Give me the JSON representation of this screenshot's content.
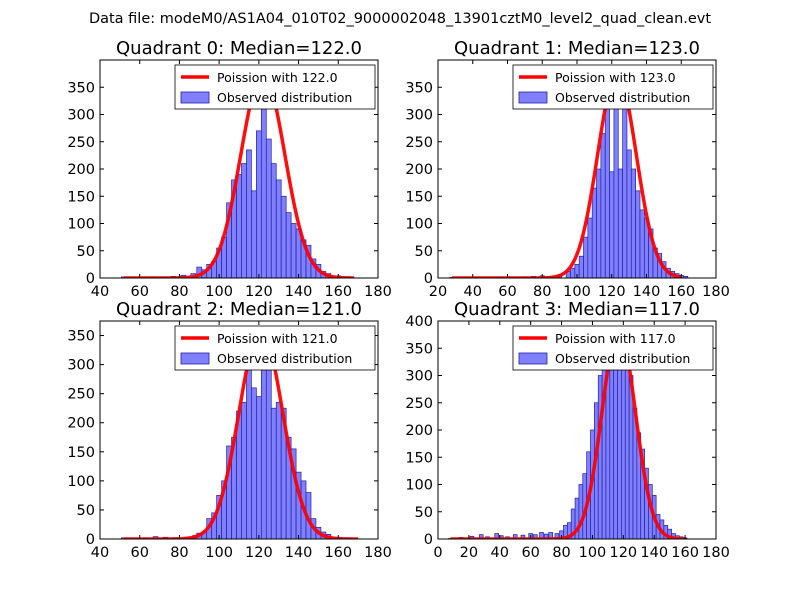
{
  "figure": {
    "title": "Data file: modeM0/AS1A04_010T02_9000002048_13901cztM0_level2_quad_clean.evt"
  },
  "colors": {
    "bar_fill": "#8080ff",
    "bar_edge": "#2020aa",
    "curve": "#ff0000",
    "axes": "#000000"
  },
  "chart_data": [
    {
      "type": "bar",
      "title": "Quadrant 0: Median=122.0",
      "legend": {
        "placement": "top-right",
        "entries": [
          "Poission with 122.0",
          "Observed distribution"
        ]
      },
      "xlim": [
        40,
        180
      ],
      "ylim": [
        0,
        400
      ],
      "xticks": [
        40,
        60,
        80,
        100,
        120,
        140,
        160,
        180
      ],
      "yticks": [
        0,
        50,
        100,
        150,
        200,
        250,
        300,
        350
      ],
      "bin_width": 2.5,
      "bins": [
        [
          52,
          2
        ],
        [
          57,
          1
        ],
        [
          62,
          1
        ],
        [
          67,
          2
        ],
        [
          72,
          1
        ],
        [
          77,
          3
        ],
        [
          82,
          5
        ],
        [
          87,
          8
        ],
        [
          90,
          20
        ],
        [
          92.5,
          15
        ],
        [
          95,
          25
        ],
        [
          97.5,
          30
        ],
        [
          100,
          55
        ],
        [
          102.5,
          75
        ],
        [
          105,
          138
        ],
        [
          107.5,
          180
        ],
        [
          110,
          190
        ],
        [
          112.5,
          210
        ],
        [
          115,
          235
        ],
        [
          117.5,
          160
        ],
        [
          120,
          270
        ],
        [
          122.5,
          325
        ],
        [
          125,
          255
        ],
        [
          127.5,
          210
        ],
        [
          130,
          180
        ],
        [
          132.5,
          150
        ],
        [
          135,
          120
        ],
        [
          137.5,
          100
        ],
        [
          140,
          90
        ],
        [
          142.5,
          70
        ],
        [
          145,
          60
        ],
        [
          147.5,
          35
        ],
        [
          150,
          25
        ],
        [
          152.5,
          12
        ],
        [
          155,
          8
        ],
        [
          160,
          4
        ],
        [
          165,
          2
        ]
      ],
      "poisson": {
        "mean": 122.0,
        "peak": 375,
        "xmin": 52,
        "xmax": 168
      }
    },
    {
      "type": "bar",
      "title": "Quadrant 1: Median=123.0",
      "legend": {
        "placement": "top-right",
        "entries": [
          "Poission with 123.0",
          "Observed distribution"
        ]
      },
      "xlim": [
        20,
        180
      ],
      "ylim": [
        0,
        400
      ],
      "xticks": [
        20,
        40,
        60,
        80,
        100,
        120,
        140,
        160,
        180
      ],
      "yticks": [
        0,
        50,
        100,
        150,
        200,
        250,
        300,
        350
      ],
      "bin_width": 2.5,
      "bins": [
        [
          28,
          1
        ],
        [
          42,
          1
        ],
        [
          55,
          1
        ],
        [
          62,
          1
        ],
        [
          70,
          2
        ],
        [
          75,
          3
        ],
        [
          80,
          4
        ],
        [
          85,
          3
        ],
        [
          90,
          6
        ],
        [
          95,
          12
        ],
        [
          97.5,
          18
        ],
        [
          100,
          25
        ],
        [
          102.5,
          40
        ],
        [
          105,
          75
        ],
        [
          107.5,
          110
        ],
        [
          110,
          165
        ],
        [
          112.5,
          200
        ],
        [
          115,
          265
        ],
        [
          117.5,
          340
        ],
        [
          120,
          195
        ],
        [
          122.5,
          355
        ],
        [
          125,
          200
        ],
        [
          127.5,
          345
        ],
        [
          130,
          235
        ],
        [
          132.5,
          200
        ],
        [
          135,
          160
        ],
        [
          137.5,
          125
        ],
        [
          140,
          110
        ],
        [
          142.5,
          90
        ],
        [
          145,
          55
        ],
        [
          147.5,
          45
        ],
        [
          150,
          30
        ],
        [
          152.5,
          18
        ],
        [
          155,
          12
        ],
        [
          157.5,
          8
        ],
        [
          160,
          5
        ],
        [
          162.5,
          3
        ]
      ],
      "poisson": {
        "mean": 123.0,
        "peak": 375,
        "xmin": 28,
        "xmax": 160
      }
    },
    {
      "type": "bar",
      "title": "Quadrant 2: Median=121.0",
      "legend": {
        "placement": "top-right",
        "entries": [
          "Poission with 121.0",
          "Observed distribution"
        ]
      },
      "xlim": [
        40,
        180
      ],
      "ylim": [
        0,
        375
      ],
      "xticks": [
        40,
        60,
        80,
        100,
        120,
        140,
        160,
        180
      ],
      "yticks": [
        0,
        50,
        100,
        150,
        200,
        250,
        300,
        350
      ],
      "bin_width": 2.5,
      "bins": [
        [
          52,
          2
        ],
        [
          58,
          1
        ],
        [
          63,
          2
        ],
        [
          68,
          4
        ],
        [
          73,
          3
        ],
        [
          78,
          2
        ],
        [
          84,
          3
        ],
        [
          88,
          6
        ],
        [
          90,
          10
        ],
        [
          92.5,
          12
        ],
        [
          95,
          35
        ],
        [
          97.5,
          45
        ],
        [
          100,
          75
        ],
        [
          102.5,
          100
        ],
        [
          105,
          160
        ],
        [
          107.5,
          175
        ],
        [
          110,
          220
        ],
        [
          112.5,
          235
        ],
        [
          115,
          335
        ],
        [
          117.5,
          260
        ],
        [
          120,
          245
        ],
        [
          122.5,
          305
        ],
        [
          125,
          300
        ],
        [
          127.5,
          225
        ],
        [
          130,
          235
        ],
        [
          132.5,
          225
        ],
        [
          135,
          175
        ],
        [
          137.5,
          155
        ],
        [
          140,
          115
        ],
        [
          142.5,
          100
        ],
        [
          145,
          80
        ],
        [
          147.5,
          35
        ],
        [
          150,
          20
        ],
        [
          152.5,
          12
        ],
        [
          155,
          8
        ],
        [
          160,
          3
        ],
        [
          165,
          2
        ]
      ],
      "poisson": {
        "mean": 121.0,
        "peak": 360,
        "xmin": 52,
        "xmax": 170
      }
    },
    {
      "type": "bar",
      "title": "Quadrant 3: Median=117.0",
      "legend": {
        "placement": "top-right",
        "entries": [
          "Poission with 117.0",
          "Observed distribution"
        ]
      },
      "xlim": [
        0,
        180
      ],
      "ylim": [
        0,
        400
      ],
      "xticks": [
        0,
        20,
        40,
        60,
        80,
        100,
        120,
        140,
        160,
        180
      ],
      "yticks": [
        0,
        50,
        100,
        150,
        200,
        250,
        300,
        350,
        400
      ],
      "bin_width": 2.5,
      "bins": [
        [
          8,
          1
        ],
        [
          15,
          3
        ],
        [
          22,
          5
        ],
        [
          28,
          8
        ],
        [
          32,
          4
        ],
        [
          38,
          10
        ],
        [
          41,
          6
        ],
        [
          45,
          4
        ],
        [
          50,
          8
        ],
        [
          55,
          7
        ],
        [
          60,
          10
        ],
        [
          63,
          8
        ],
        [
          67,
          12
        ],
        [
          70,
          9
        ],
        [
          73,
          12
        ],
        [
          77,
          10
        ],
        [
          80,
          15
        ],
        [
          82.5,
          25
        ],
        [
          85,
          30
        ],
        [
          87.5,
          55
        ],
        [
          90,
          75
        ],
        [
          92.5,
          100
        ],
        [
          95,
          120
        ],
        [
          97.5,
          160
        ],
        [
          100,
          200
        ],
        [
          102.5,
          250
        ],
        [
          105,
          300
        ],
        [
          107.5,
          340
        ],
        [
          110,
          320
        ],
        [
          112.5,
          325
        ],
        [
          115,
          345
        ],
        [
          117.5,
          370
        ],
        [
          120,
          355
        ],
        [
          122.5,
          345
        ],
        [
          125,
          300
        ],
        [
          127.5,
          240
        ],
        [
          130,
          195
        ],
        [
          132.5,
          165
        ],
        [
          135,
          130
        ],
        [
          137.5,
          100
        ],
        [
          140,
          80
        ],
        [
          142.5,
          45
        ],
        [
          145,
          35
        ],
        [
          147.5,
          25
        ],
        [
          150,
          18
        ],
        [
          152.5,
          10
        ],
        [
          155,
          6
        ],
        [
          157.5,
          4
        ],
        [
          160,
          2
        ]
      ],
      "poisson": {
        "mean": 117.0,
        "peak": 385,
        "xmin": 8,
        "xmax": 160
      }
    }
  ]
}
